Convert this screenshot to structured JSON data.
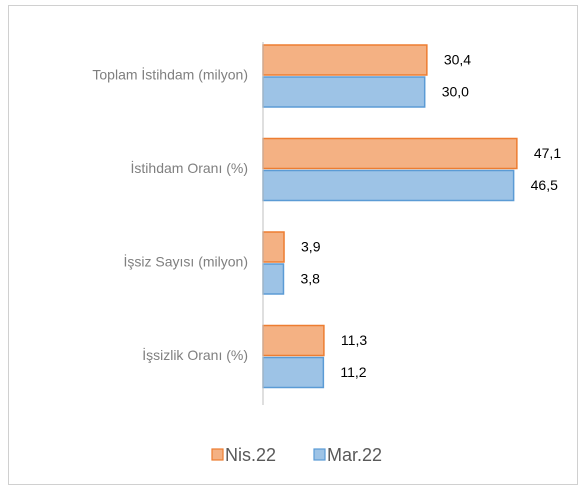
{
  "chart_data": {
    "type": "bar",
    "orientation": "horizontal",
    "categories": [
      "Toplam İstihdam (milyon)",
      "İstihdam Oranı (%)",
      "İşsiz Sayısı (milyon)",
      "İşsizlik Oranı (%)"
    ],
    "series": [
      {
        "name": "Nis.22",
        "color": "#f4b183",
        "values": [
          30.4,
          47.1,
          3.9,
          11.3
        ],
        "value_labels": [
          "30,4",
          "47,1",
          "3,9",
          "11,3"
        ]
      },
      {
        "name": "Mar.22",
        "color": "#9dc3e6",
        "values": [
          30.0,
          46.5,
          3.8,
          11.2
        ],
        "value_labels": [
          "30,0",
          "46,5",
          "3,8",
          "11,2"
        ]
      }
    ],
    "legend": "bottom"
  }
}
